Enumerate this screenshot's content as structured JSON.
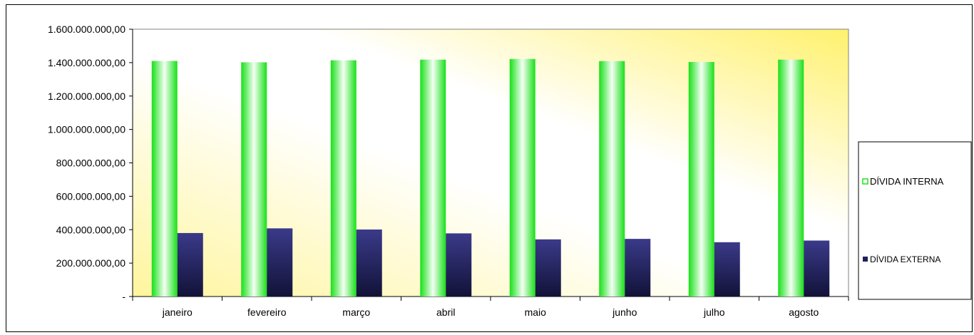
{
  "chart_data": {
    "type": "bar",
    "title": "",
    "xlabel": "",
    "ylabel": "",
    "categories": [
      "janeiro",
      "fevereiro",
      "março",
      "abril",
      "maio",
      "junho",
      "julho",
      "agosto"
    ],
    "series": [
      {
        "name": "DÍVIDA INTERNA",
        "values": [
          1410000000,
          1402000000,
          1414000000,
          1418000000,
          1422000000,
          1409000000,
          1404000000,
          1418000000
        ],
        "color": "#22e322"
      },
      {
        "name": "DÍVIDA EXTERNA",
        "values": [
          380000000,
          408000000,
          401000000,
          378000000,
          342000000,
          345000000,
          325000000,
          335000000
        ],
        "color": "#1f1f5e"
      }
    ],
    "ylim": [
      0,
      1600000000
    ],
    "yticks": [
      0,
      200000000,
      400000000,
      600000000,
      800000000,
      1000000000,
      1200000000,
      1400000000,
      1600000000
    ],
    "ytick_labels": [
      "-",
      "200.000.000,00",
      "400.000.000,00",
      "600.000.000,00",
      "800.000.000,00",
      "1.000.000.000,00",
      "1.200.000.000,00",
      "1.400.000.000,00",
      "1.600.000.000,00"
    ],
    "grid": false,
    "legend": "right",
    "plot_background": "#fff9c0"
  }
}
